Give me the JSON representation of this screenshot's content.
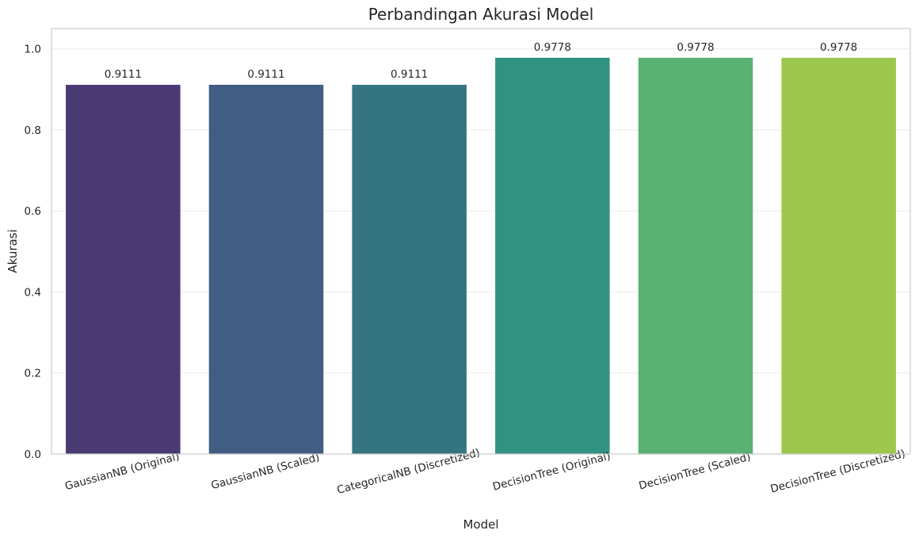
{
  "chart_data": {
    "type": "bar",
    "title": "Perbandingan Akurasi Model",
    "xlabel": "Model",
    "ylabel": "Akurasi",
    "categories": [
      "GaussianNB (Original)",
      "GaussianNB (Scaled)",
      "CategoricalNB (Discretized)",
      "DecisionTree (Original)",
      "DecisionTree (Scaled)",
      "DecisionTree (Discretized)"
    ],
    "values": [
      0.9111,
      0.9111,
      0.9111,
      0.9778,
      0.9778,
      0.9778
    ],
    "data_labels": [
      "0.9111",
      "0.9111",
      "0.9111",
      "0.9778",
      "0.9778",
      "0.9778"
    ],
    "colors": [
      "#4a3a73",
      "#415d84",
      "#357582",
      "#329281",
      "#5ab174",
      "#9bc74d"
    ],
    "ylim": [
      0,
      1.05
    ],
    "yticks": [
      0.0,
      0.2,
      0.4,
      0.6,
      0.8,
      1.0
    ],
    "ytick_labels": [
      "0.0",
      "0.2",
      "0.4",
      "0.6",
      "0.8",
      "1.0"
    ],
    "grid": "y",
    "x_tick_rotation_deg": 15
  }
}
